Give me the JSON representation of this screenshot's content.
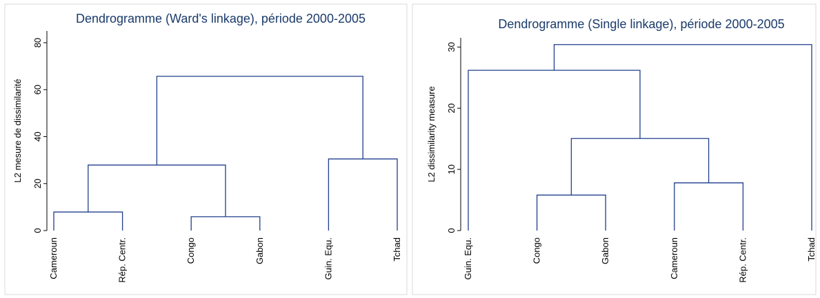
{
  "chart_data": [
    {
      "type": "dendrogram",
      "title": "Dendrogramme (Ward's linkage), période 2000-2005",
      "y_label": "L2 mesure de dissimilarité",
      "categories": [
        "Cameroun",
        "Rép. Centr.",
        "Congo",
        "Gabon",
        "Guin. Equ.",
        "Tchad"
      ],
      "linkage": [
        {
          "children": [
            2,
            3
          ],
          "height": 5.9
        },
        {
          "children": [
            0,
            1
          ],
          "height": 7.9
        },
        {
          "children": [
            7,
            6
          ],
          "height": 27.9
        },
        {
          "children": [
            4,
            5
          ],
          "height": 30.5
        },
        {
          "children": [
            8,
            9
          ],
          "height": 65.7
        }
      ],
      "color": "#1f3d8c",
      "ylim": [
        0,
        85
      ],
      "yticks": [
        0,
        20,
        40,
        60,
        80
      ]
    },
    {
      "type": "dendrogram",
      "title": "Dendrogramme (Single linkage), période 2000-2005",
      "y_label": "L2 dissimilarity measure",
      "categories": [
        "Guin. Equ.",
        "Congo",
        "Gabon",
        "Cameroun",
        "Rép. Centr.",
        "Tchad"
      ],
      "linkage": [
        {
          "children": [
            1,
            2
          ],
          "height": 5.8
        },
        {
          "children": [
            3,
            4
          ],
          "height": 7.8
        },
        {
          "children": [
            6,
            7
          ],
          "height": 15.05
        },
        {
          "children": [
            0,
            8
          ],
          "height": 26.2
        },
        {
          "children": [
            9,
            5
          ],
          "height": 30.4
        }
      ],
      "color": "#1f3d8c",
      "ylim": [
        0,
        31.5
      ],
      "yticks": [
        0,
        10,
        20,
        30
      ]
    }
  ]
}
